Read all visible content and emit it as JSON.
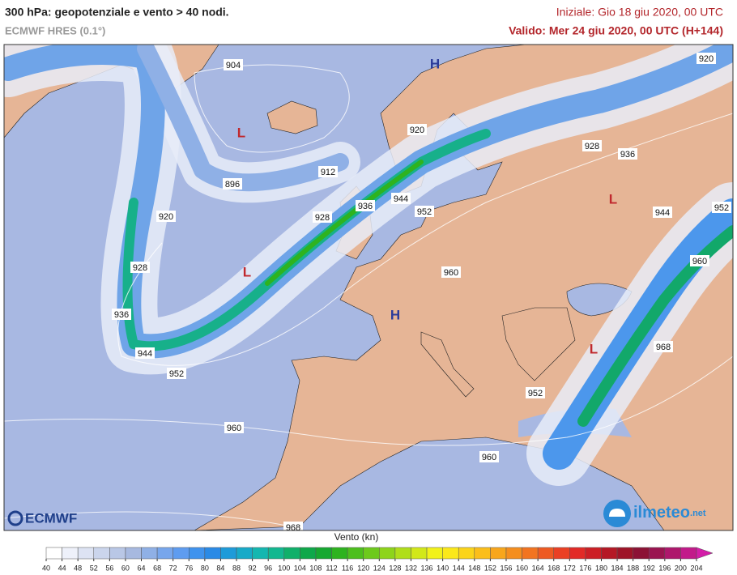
{
  "header": {
    "title": "300 hPa: geopotenziale e vento > 40 nodi.",
    "subtitle": "ECMWF HRES (0.1°)",
    "init": "Iniziale: Gio 18 giu 2020, 00 UTC",
    "valid": "Valido: Mer 24 giu 2020, 00 UTC (H+144)"
  },
  "map": {
    "contour_labels": [
      904,
      920,
      920,
      928,
      936,
      912,
      896,
      944,
      936,
      928,
      920,
      952,
      944,
      952,
      960,
      928,
      960,
      936,
      968,
      944,
      952,
      952,
      960,
      960,
      968
    ],
    "pressure_centers": [
      "H",
      "H",
      "L",
      "L",
      "L",
      "L"
    ]
  },
  "logos": {
    "left": "ECMWF",
    "right": "ilmeteo",
    "right_suffix": ".net"
  },
  "legend": {
    "title": "Vento (kn)",
    "ticks": [
      40,
      44,
      48,
      52,
      56,
      60,
      64,
      68,
      72,
      76,
      80,
      84,
      88,
      92,
      96,
      100,
      104,
      108,
      112,
      116,
      120,
      124,
      128,
      132,
      136,
      140,
      144,
      148,
      152,
      156,
      160,
      164,
      168,
      172,
      176,
      180,
      184,
      188,
      192,
      196,
      200,
      204
    ],
    "colors": [
      "#ffffff",
      "#eef1fa",
      "#dde3f3",
      "#cbd5ec",
      "#b9c7e6",
      "#a7b9e0",
      "#8fb0e6",
      "#77a6ec",
      "#5e9cf0",
      "#3f93ee",
      "#2a8ae6",
      "#1e9bd9",
      "#17aac8",
      "#14b7b0",
      "#12b890",
      "#10b06a",
      "#0ea84a",
      "#16a830",
      "#2eb31f",
      "#4dbf1d",
      "#6dca1c",
      "#8ed41b",
      "#b0de1a",
      "#d2e819",
      "#f2f21a",
      "#fbe81a",
      "#fbd41a",
      "#fbbe1a",
      "#f8a61c",
      "#f58e1e",
      "#f27420",
      "#ee5a22",
      "#ea4024",
      "#e22a26",
      "#cc1f25",
      "#b51825",
      "#9e1428",
      "#8c1235",
      "#9a1450",
      "#ae176c",
      "#c21a8a",
      "#d41da8"
    ]
  }
}
